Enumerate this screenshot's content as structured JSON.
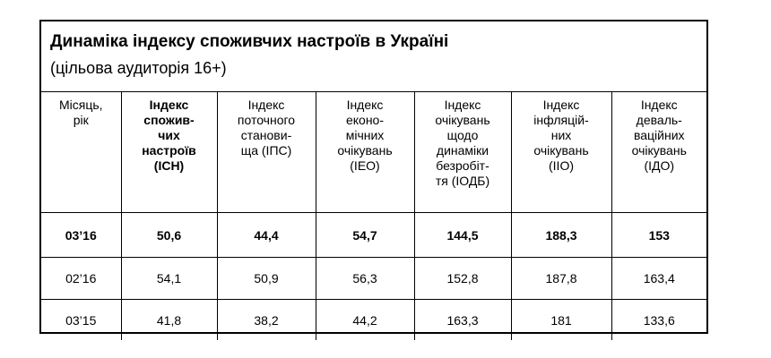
{
  "header": {
    "title": "Динаміка індексу споживчих настроїв в Україні",
    "subtitle": "(цільова аудиторія 16+)"
  },
  "table": {
    "columns": [
      [
        "Місяць,",
        "рік"
      ],
      [
        "Індекс",
        "спожив-",
        "чих",
        "настроїв",
        "(ІСН)"
      ],
      [
        "Індекс",
        "поточного",
        "станови-",
        "ща (ІПС)"
      ],
      [
        "Індекс",
        "еконо-",
        "мічних",
        "очікувань",
        "(ІЕО)"
      ],
      [
        "Індекс",
        "очікувань",
        "щодо",
        "динаміки",
        "безробіт-",
        "тя (ІОДБ)"
      ],
      [
        "Індекс",
        "інфляцій-",
        "них",
        "очікувань",
        "(ІІО)"
      ],
      [
        "Індекс",
        "деваль-",
        "ваційних",
        "очікувань",
        "(ІДО)"
      ]
    ],
    "rows": [
      [
        "03’16",
        "50,6",
        "44,4",
        "54,7",
        "144,5",
        "188,3",
        "153"
      ],
      [
        "02’16",
        "54,1",
        "50,9",
        "56,3",
        "152,8",
        "187,8",
        "163,4"
      ],
      [
        "03’15",
        "41,8",
        "38,2",
        "44,2",
        "163,3",
        "181",
        "133,6"
      ]
    ]
  }
}
